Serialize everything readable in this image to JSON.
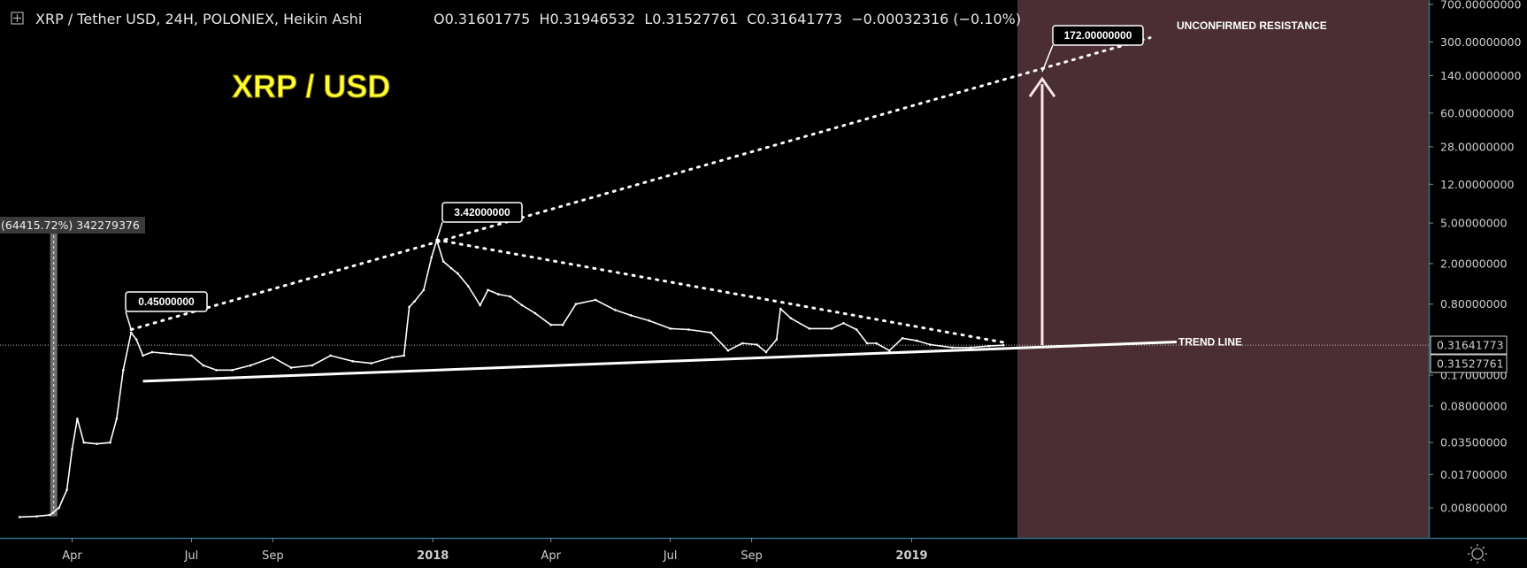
{
  "header": {
    "symbol_icon": "expand-square-icon",
    "title": "XRP / Tether USD, 24H, POLONIEX, Heikin Ashi",
    "ohlc": "O0.31601775  H0.31946532  L0.31527761  C0.31641773  −0.00032316 (−0.10%)"
  },
  "chart_title": "XRP / USD",
  "measure_label": "(64415.72%) 342279376",
  "colors": {
    "background": "#000000",
    "projection_zone": "#4a2e33",
    "price_line": "#ffffff",
    "axis_border": "#2a6f86",
    "label_box": "#000000",
    "arrow": "#fbe4e8"
  },
  "chart_data": {
    "type": "line",
    "scale": "log",
    "y_ticks": [
      "700.00000000",
      "300.00000000",
      "140.00000000",
      "60.00000000",
      "28.00000000",
      "12.00000000",
      "5.00000000",
      "2.00000000",
      "0.80000000",
      "0.17000000",
      "0.08000000",
      "0.03500000",
      "0.01700000",
      "0.00800000"
    ],
    "y_tick_values": [
      700,
      300,
      140,
      60,
      28,
      12,
      5,
      2,
      0.8,
      0.17,
      0.08,
      0.035,
      0.017,
      0.008
    ],
    "x_ticks": [
      {
        "label": "Apr",
        "date": "2017-04-01",
        "bold": false
      },
      {
        "label": "Jul",
        "date": "2017-07-01",
        "bold": false
      },
      {
        "label": "Sep",
        "date": "2017-09-01",
        "bold": false
      },
      {
        "label": "2018",
        "date": "2018-01-01",
        "bold": true
      },
      {
        "label": "Apr",
        "date": "2018-04-01",
        "bold": false
      },
      {
        "label": "Jul",
        "date": "2018-07-01",
        "bold": false
      },
      {
        "label": "Sep",
        "date": "2018-09-01",
        "bold": false
      },
      {
        "label": "2019",
        "date": "2019-01-01",
        "bold": true
      }
    ],
    "price_labels": [
      {
        "text": "0.31641773",
        "value": 0.31641773
      },
      {
        "text": "0.31527761",
        "value": 0.31527761
      }
    ],
    "series": [
      {
        "points": [
          [
            "2017-02-20",
            0.0065
          ],
          [
            "2017-03-05",
            0.0066
          ],
          [
            "2017-03-15",
            0.0068
          ],
          [
            "2017-03-22",
            0.008
          ],
          [
            "2017-03-28",
            0.012
          ],
          [
            "2017-04-01",
            0.03
          ],
          [
            "2017-04-05",
            0.06
          ],
          [
            "2017-04-10",
            0.035
          ],
          [
            "2017-04-20",
            0.034
          ],
          [
            "2017-04-30",
            0.035
          ],
          [
            "2017-05-05",
            0.06
          ],
          [
            "2017-05-10",
            0.18
          ],
          [
            "2017-05-16",
            0.42
          ],
          [
            "2017-05-20",
            0.36
          ],
          [
            "2017-05-25",
            0.25
          ],
          [
            "2017-06-01",
            0.27
          ],
          [
            "2017-06-15",
            0.26
          ],
          [
            "2017-07-01",
            0.25
          ],
          [
            "2017-07-10",
            0.2
          ],
          [
            "2017-07-20",
            0.18
          ],
          [
            "2017-08-01",
            0.18
          ],
          [
            "2017-08-15",
            0.2
          ],
          [
            "2017-09-01",
            0.24
          ],
          [
            "2017-09-15",
            0.19
          ],
          [
            "2017-10-01",
            0.2
          ],
          [
            "2017-10-15",
            0.25
          ],
          [
            "2017-11-01",
            0.22
          ],
          [
            "2017-11-15",
            0.21
          ],
          [
            "2017-12-01",
            0.24
          ],
          [
            "2017-12-10",
            0.25
          ],
          [
            "2017-12-14",
            0.75
          ],
          [
            "2017-12-18",
            0.85
          ],
          [
            "2017-12-25",
            1.1
          ],
          [
            "2017-12-31",
            2.3
          ],
          [
            "2018-01-04",
            3.4
          ],
          [
            "2018-01-09",
            2.1
          ],
          [
            "2018-01-15",
            1.8
          ],
          [
            "2018-01-20",
            1.6
          ],
          [
            "2018-01-28",
            1.2
          ],
          [
            "2018-02-06",
            0.78
          ],
          [
            "2018-02-12",
            1.1
          ],
          [
            "2018-02-20",
            1.0
          ],
          [
            "2018-03-01",
            0.95
          ],
          [
            "2018-03-10",
            0.78
          ],
          [
            "2018-03-20",
            0.65
          ],
          [
            "2018-04-01",
            0.5
          ],
          [
            "2018-04-10",
            0.5
          ],
          [
            "2018-04-20",
            0.8
          ],
          [
            "2018-05-05",
            0.88
          ],
          [
            "2018-05-20",
            0.7
          ],
          [
            "2018-06-01",
            0.62
          ],
          [
            "2018-06-15",
            0.55
          ],
          [
            "2018-07-01",
            0.46
          ],
          [
            "2018-07-15",
            0.45
          ],
          [
            "2018-08-01",
            0.42
          ],
          [
            "2018-08-14",
            0.28
          ],
          [
            "2018-08-25",
            0.33
          ],
          [
            "2018-09-05",
            0.32
          ],
          [
            "2018-09-12",
            0.27
          ],
          [
            "2018-09-20",
            0.36
          ],
          [
            "2018-09-23",
            0.72
          ],
          [
            "2018-10-01",
            0.58
          ],
          [
            "2018-10-15",
            0.46
          ],
          [
            "2018-11-01",
            0.46
          ],
          [
            "2018-11-10",
            0.52
          ],
          [
            "2018-11-20",
            0.45
          ],
          [
            "2018-11-28",
            0.33
          ],
          [
            "2018-12-05",
            0.33
          ],
          [
            "2018-12-15",
            0.28
          ],
          [
            "2018-12-25",
            0.37
          ],
          [
            "2019-01-05",
            0.35
          ],
          [
            "2019-01-15",
            0.32
          ],
          [
            "2019-02-01",
            0.3
          ],
          [
            "2019-02-15",
            0.3
          ],
          [
            "2019-03-01",
            0.31
          ],
          [
            "2019-03-12",
            0.316
          ]
        ]
      }
    ]
  },
  "annotations": {
    "trend_line_label": "TREND LINE",
    "resistance_label": "UNCONFIRMED RESISTANCE",
    "callouts": [
      {
        "text": "0.45000000",
        "date": "2017-05-16",
        "value": 0.45
      },
      {
        "text": "3.42000000",
        "date": "2018-01-04",
        "value": 3.42
      },
      {
        "text": "172.00000000",
        "date": "2019-04-15",
        "value": 172
      }
    ]
  },
  "footer": {
    "settings_icon": "sun-settings-icon"
  }
}
